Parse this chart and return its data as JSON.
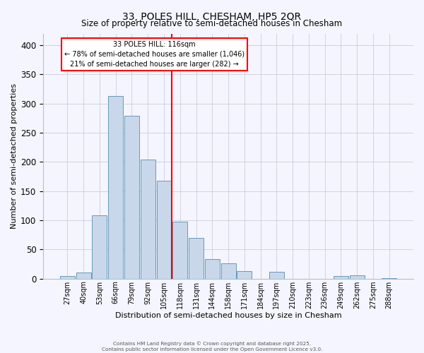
{
  "title": "33, POLES HILL, CHESHAM, HP5 2QR",
  "subtitle": "Size of property relative to semi-detached houses in Chesham",
  "xlabel": "Distribution of semi-detached houses by size in Chesham",
  "ylabel": "Number of semi-detached properties",
  "bar_labels": [
    "27sqm",
    "40sqm",
    "53sqm",
    "66sqm",
    "79sqm",
    "92sqm",
    "105sqm",
    "118sqm",
    "131sqm",
    "144sqm",
    "158sqm",
    "171sqm",
    "184sqm",
    "197sqm",
    "210sqm",
    "223sqm",
    "236sqm",
    "249sqm",
    "262sqm",
    "275sqm",
    "288sqm"
  ],
  "bar_values": [
    5,
    10,
    109,
    313,
    279,
    204,
    168,
    98,
    70,
    33,
    26,
    13,
    0,
    12,
    0,
    0,
    0,
    5,
    6,
    0,
    1
  ],
  "bar_color": "#c8d8ea",
  "bar_edge_color": "#6699bb",
  "vline_index": 7,
  "vline_color": "red",
  "annotation_title": "33 POLES HILL: 116sqm",
  "annotation_line1": "← 78% of semi-detached houses are smaller (1,046)",
  "annotation_line2": "21% of semi-detached houses are larger (282) →",
  "ylim": [
    0,
    420
  ],
  "yticks": [
    0,
    50,
    100,
    150,
    200,
    250,
    300,
    350,
    400
  ],
  "footer1": "Contains HM Land Registry data © Crown copyright and database right 2025.",
  "footer2": "Contains public sector information licensed under the Open Government Licence v3.0.",
  "bg_color": "#f5f5ff",
  "grid_color": "#ccccdd"
}
